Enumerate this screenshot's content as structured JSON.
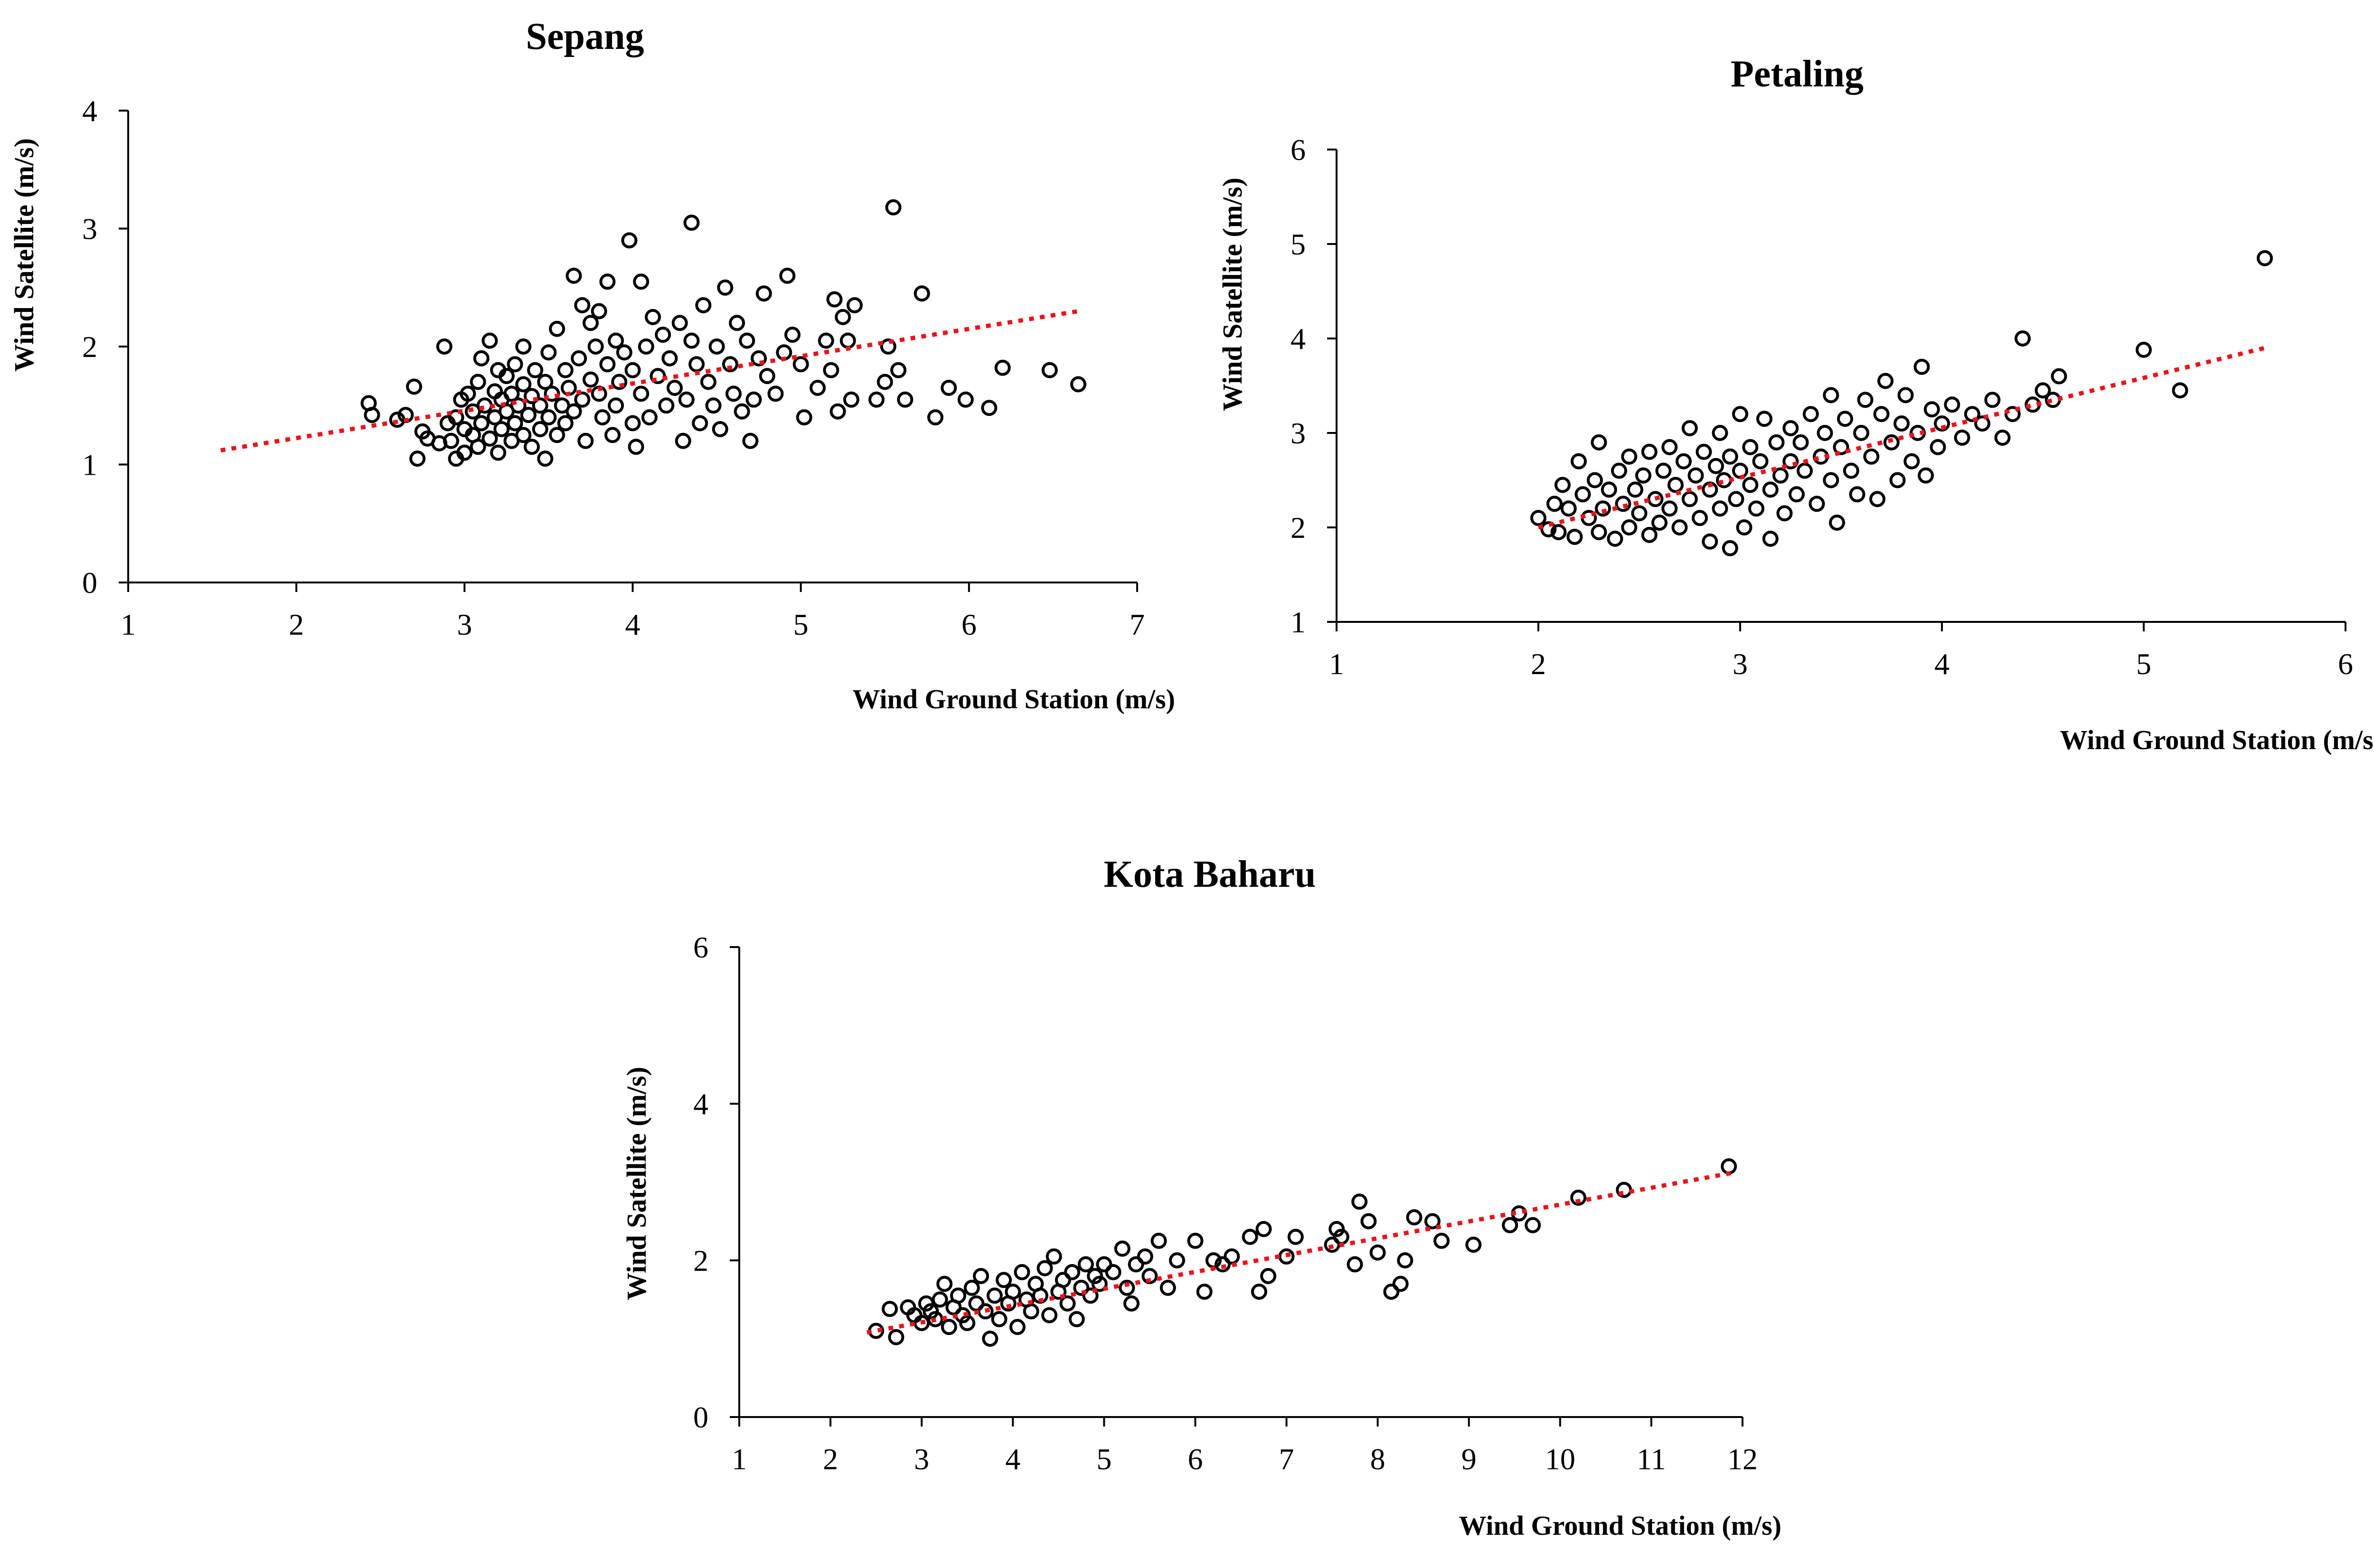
{
  "colors": {
    "background": "#ffffff",
    "points": "#000000",
    "trendline": "#e8141c"
  },
  "chart_data": [
    {
      "type": "scatter",
      "title": "Sepang",
      "xlabel": "Wind Ground Station (m/s)",
      "ylabel": "Wind Satellite (m/s)",
      "xlim": [
        1,
        7
      ],
      "ylim": [
        0,
        4
      ],
      "xticks": [
        1,
        2,
        3,
        4,
        5,
        6,
        7
      ],
      "yticks": [
        0,
        1,
        2,
        3,
        4
      ],
      "trendline": {
        "style": "dotted",
        "x": [
          1.55,
          6.65
        ],
        "y": [
          1.12,
          2.3
        ]
      },
      "points": [
        [
          2.43,
          1.52
        ],
        [
          2.45,
          1.42
        ],
        [
          2.6,
          1.38
        ],
        [
          2.65,
          1.42
        ],
        [
          2.7,
          1.66
        ],
        [
          2.72,
          1.05
        ],
        [
          2.75,
          1.28
        ],
        [
          2.78,
          1.22
        ],
        [
          2.85,
          1.18
        ],
        [
          2.88,
          2.0
        ],
        [
          2.9,
          1.35
        ],
        [
          2.92,
          1.2
        ],
        [
          2.95,
          1.05
        ],
        [
          2.95,
          1.4
        ],
        [
          2.98,
          1.55
        ],
        [
          3.0,
          1.1
        ],
        [
          3.0,
          1.3
        ],
        [
          3.02,
          1.6
        ],
        [
          3.05,
          1.25
        ],
        [
          3.05,
          1.45
        ],
        [
          3.08,
          1.15
        ],
        [
          3.08,
          1.7
        ],
        [
          3.1,
          1.35
        ],
        [
          3.1,
          1.9
        ],
        [
          3.12,
          1.5
        ],
        [
          3.15,
          1.22
        ],
        [
          3.15,
          2.05
        ],
        [
          3.18,
          1.4
        ],
        [
          3.18,
          1.62
        ],
        [
          3.2,
          1.1
        ],
        [
          3.2,
          1.8
        ],
        [
          3.22,
          1.3
        ],
        [
          3.22,
          1.55
        ],
        [
          3.25,
          1.45
        ],
        [
          3.25,
          1.75
        ],
        [
          3.28,
          1.2
        ],
        [
          3.28,
          1.6
        ],
        [
          3.3,
          1.35
        ],
        [
          3.3,
          1.85
        ],
        [
          3.32,
          1.5
        ],
        [
          3.35,
          1.25
        ],
        [
          3.35,
          1.68
        ],
        [
          3.35,
          2.0
        ],
        [
          3.38,
          1.42
        ],
        [
          3.4,
          1.15
        ],
        [
          3.4,
          1.58
        ],
        [
          3.42,
          1.8
        ],
        [
          3.45,
          1.3
        ],
        [
          3.45,
          1.5
        ],
        [
          3.48,
          1.05
        ],
        [
          3.48,
          1.7
        ],
        [
          3.5,
          1.4
        ],
        [
          3.5,
          1.95
        ],
        [
          3.52,
          1.6
        ],
        [
          3.55,
          1.25
        ],
        [
          3.55,
          2.15
        ],
        [
          3.58,
          1.5
        ],
        [
          3.6,
          1.8
        ],
        [
          3.6,
          1.35
        ],
        [
          3.62,
          1.65
        ],
        [
          3.65,
          2.6
        ],
        [
          3.65,
          1.45
        ],
        [
          3.68,
          1.9
        ],
        [
          3.7,
          2.35
        ],
        [
          3.7,
          1.55
        ],
        [
          3.72,
          1.2
        ],
        [
          3.75,
          2.2
        ],
        [
          3.75,
          1.72
        ],
        [
          3.78,
          2.0
        ],
        [
          3.8,
          2.3
        ],
        [
          3.8,
          1.6
        ],
        [
          3.82,
          1.4
        ],
        [
          3.85,
          2.55
        ],
        [
          3.85,
          1.85
        ],
        [
          3.88,
          1.25
        ],
        [
          3.9,
          2.05
        ],
        [
          3.9,
          1.5
        ],
        [
          3.92,
          1.7
        ],
        [
          3.95,
          1.95
        ],
        [
          3.98,
          2.9
        ],
        [
          4.0,
          1.35
        ],
        [
          4.0,
          1.8
        ],
        [
          4.02,
          1.15
        ],
        [
          4.05,
          2.55
        ],
        [
          4.05,
          1.6
        ],
        [
          4.08,
          2.0
        ],
        [
          4.1,
          1.4
        ],
        [
          4.12,
          2.25
        ],
        [
          4.15,
          1.75
        ],
        [
          4.18,
          2.1
        ],
        [
          4.2,
          1.5
        ],
        [
          4.22,
          1.9
        ],
        [
          4.25,
          1.65
        ],
        [
          4.28,
          2.2
        ],
        [
          4.3,
          1.2
        ],
        [
          4.32,
          1.55
        ],
        [
          4.35,
          3.05
        ],
        [
          4.35,
          2.05
        ],
        [
          4.38,
          1.85
        ],
        [
          4.4,
          1.35
        ],
        [
          4.42,
          2.35
        ],
        [
          4.45,
          1.7
        ],
        [
          4.48,
          1.5
        ],
        [
          4.5,
          2.0
        ],
        [
          4.52,
          1.3
        ],
        [
          4.55,
          2.5
        ],
        [
          4.58,
          1.85
        ],
        [
          4.6,
          1.6
        ],
        [
          4.62,
          2.2
        ],
        [
          4.65,
          1.45
        ],
        [
          4.68,
          2.05
        ],
        [
          4.7,
          1.2
        ],
        [
          4.72,
          1.55
        ],
        [
          4.75,
          1.9
        ],
        [
          4.78,
          2.45
        ],
        [
          4.8,
          1.75
        ],
        [
          4.85,
          1.6
        ],
        [
          4.9,
          1.95
        ],
        [
          4.92,
          2.6
        ],
        [
          4.95,
          2.1
        ],
        [
          5.0,
          1.85
        ],
        [
          5.02,
          1.4
        ],
        [
          5.1,
          1.65
        ],
        [
          5.15,
          2.05
        ],
        [
          5.18,
          1.8
        ],
        [
          5.2,
          2.4
        ],
        [
          5.22,
          1.45
        ],
        [
          5.25,
          2.25
        ],
        [
          5.28,
          2.05
        ],
        [
          5.3,
          1.55
        ],
        [
          5.32,
          2.35
        ],
        [
          5.45,
          1.55
        ],
        [
          5.5,
          1.7
        ],
        [
          5.52,
          2.0
        ],
        [
          5.55,
          3.18
        ],
        [
          5.58,
          1.8
        ],
        [
          5.62,
          1.55
        ],
        [
          5.72,
          2.45
        ],
        [
          5.8,
          1.4
        ],
        [
          5.88,
          1.65
        ],
        [
          5.98,
          1.55
        ],
        [
          6.12,
          1.48
        ],
        [
          6.2,
          1.82
        ],
        [
          6.48,
          1.8
        ],
        [
          6.65,
          1.68
        ]
      ]
    },
    {
      "type": "scatter",
      "title": "Petaling",
      "xlabel": "Wind Ground Station (m/s)",
      "ylabel": "Wind Satellite (m/s)",
      "xlim": [
        1,
        6
      ],
      "ylim": [
        1,
        6
      ],
      "xticks": [
        1,
        2,
        3,
        4,
        5,
        6
      ],
      "yticks": [
        1,
        2,
        3,
        4,
        5,
        6
      ],
      "trendline": {
        "style": "dotted",
        "x": [
          2.0,
          5.6
        ],
        "y": [
          2.0,
          3.9
        ]
      },
      "points": [
        [
          2.0,
          2.1
        ],
        [
          2.05,
          1.98
        ],
        [
          2.08,
          2.25
        ],
        [
          2.1,
          1.95
        ],
        [
          2.12,
          2.45
        ],
        [
          2.15,
          2.2
        ],
        [
          2.18,
          1.9
        ],
        [
          2.2,
          2.7
        ],
        [
          2.22,
          2.35
        ],
        [
          2.25,
          2.1
        ],
        [
          2.28,
          2.5
        ],
        [
          2.3,
          1.95
        ],
        [
          2.3,
          2.9
        ],
        [
          2.32,
          2.2
        ],
        [
          2.35,
          2.4
        ],
        [
          2.38,
          1.88
        ],
        [
          2.4,
          2.6
        ],
        [
          2.42,
          2.25
        ],
        [
          2.45,
          2.0
        ],
        [
          2.45,
          2.75
        ],
        [
          2.48,
          2.4
        ],
        [
          2.5,
          2.15
        ],
        [
          2.52,
          2.55
        ],
        [
          2.55,
          1.92
        ],
        [
          2.55,
          2.8
        ],
        [
          2.58,
          2.3
        ],
        [
          2.6,
          2.05
        ],
        [
          2.62,
          2.6
        ],
        [
          2.65,
          2.2
        ],
        [
          2.65,
          2.85
        ],
        [
          2.68,
          2.45
        ],
        [
          2.7,
          2.0
        ],
        [
          2.72,
          2.7
        ],
        [
          2.75,
          2.3
        ],
        [
          2.75,
          3.05
        ],
        [
          2.78,
          2.55
        ],
        [
          2.8,
          2.1
        ],
        [
          2.82,
          2.8
        ],
        [
          2.85,
          1.85
        ],
        [
          2.85,
          2.4
        ],
        [
          2.88,
          2.65
        ],
        [
          2.9,
          2.2
        ],
        [
          2.9,
          3.0
        ],
        [
          2.92,
          2.5
        ],
        [
          2.95,
          1.78
        ],
        [
          2.95,
          2.75
        ],
        [
          2.98,
          2.3
        ],
        [
          3.0,
          2.6
        ],
        [
          3.0,
          3.2
        ],
        [
          3.02,
          2.0
        ],
        [
          3.05,
          2.45
        ],
        [
          3.05,
          2.85
        ],
        [
          3.08,
          2.2
        ],
        [
          3.1,
          2.7
        ],
        [
          3.12,
          3.15
        ],
        [
          3.15,
          2.4
        ],
        [
          3.15,
          1.88
        ],
        [
          3.18,
          2.9
        ],
        [
          3.2,
          2.55
        ],
        [
          3.22,
          2.15
        ],
        [
          3.25,
          3.05
        ],
        [
          3.25,
          2.7
        ],
        [
          3.28,
          2.35
        ],
        [
          3.3,
          2.9
        ],
        [
          3.32,
          2.6
        ],
        [
          3.35,
          3.2
        ],
        [
          3.38,
          2.25
        ],
        [
          3.4,
          2.75
        ],
        [
          3.42,
          3.0
        ],
        [
          3.45,
          2.5
        ],
        [
          3.45,
          3.4
        ],
        [
          3.48,
          2.05
        ],
        [
          3.5,
          2.85
        ],
        [
          3.52,
          3.15
        ],
        [
          3.55,
          2.6
        ],
        [
          3.58,
          2.35
        ],
        [
          3.6,
          3.0
        ],
        [
          3.62,
          3.35
        ],
        [
          3.65,
          2.75
        ],
        [
          3.68,
          2.3
        ],
        [
          3.7,
          3.2
        ],
        [
          3.72,
          3.55
        ],
        [
          3.75,
          2.9
        ],
        [
          3.78,
          2.5
        ],
        [
          3.8,
          3.1
        ],
        [
          3.82,
          3.4
        ],
        [
          3.85,
          2.7
        ],
        [
          3.88,
          3.0
        ],
        [
          3.9,
          3.7
        ],
        [
          3.92,
          2.55
        ],
        [
          3.95,
          3.25
        ],
        [
          3.98,
          2.85
        ],
        [
          4.0,
          3.1
        ],
        [
          4.05,
          3.3
        ],
        [
          4.1,
          2.95
        ],
        [
          4.15,
          3.2
        ],
        [
          4.2,
          3.1
        ],
        [
          4.25,
          3.35
        ],
        [
          4.3,
          2.95
        ],
        [
          4.35,
          3.2
        ],
        [
          4.4,
          4.0
        ],
        [
          4.45,
          3.3
        ],
        [
          4.5,
          3.45
        ],
        [
          4.55,
          3.35
        ],
        [
          4.58,
          3.6
        ],
        [
          5.0,
          3.88
        ],
        [
          5.18,
          3.45
        ],
        [
          5.6,
          4.85
        ]
      ]
    },
    {
      "type": "scatter",
      "title": "Kota Baharu",
      "xlabel": "Wind Ground Station (m/s)",
      "ylabel": "Wind Satellite (m/s)",
      "xlim": [
        1,
        12
      ],
      "ylim": [
        0,
        6
      ],
      "xticks": [
        1,
        2,
        3,
        4,
        5,
        6,
        7,
        8,
        9,
        10,
        11,
        12
      ],
      "yticks": [
        0,
        2,
        4,
        6
      ],
      "trendline": {
        "style": "dotted",
        "x": [
          2.4,
          11.9
        ],
        "y": [
          1.08,
          3.12
        ]
      },
      "points": [
        [
          2.5,
          1.1
        ],
        [
          2.65,
          1.38
        ],
        [
          2.72,
          1.02
        ],
        [
          2.85,
          1.4
        ],
        [
          2.92,
          1.3
        ],
        [
          3.0,
          1.2
        ],
        [
          3.05,
          1.45
        ],
        [
          3.1,
          1.35
        ],
        [
          3.15,
          1.25
        ],
        [
          3.2,
          1.5
        ],
        [
          3.25,
          1.7
        ],
        [
          3.3,
          1.15
        ],
        [
          3.35,
          1.4
        ],
        [
          3.4,
          1.55
        ],
        [
          3.45,
          1.3
        ],
        [
          3.5,
          1.2
        ],
        [
          3.55,
          1.65
        ],
        [
          3.6,
          1.45
        ],
        [
          3.65,
          1.8
        ],
        [
          3.7,
          1.35
        ],
        [
          3.75,
          1.0
        ],
        [
          3.8,
          1.55
        ],
        [
          3.85,
          1.25
        ],
        [
          3.9,
          1.75
        ],
        [
          3.95,
          1.45
        ],
        [
          4.0,
          1.6
        ],
        [
          4.05,
          1.15
        ],
        [
          4.1,
          1.85
        ],
        [
          4.15,
          1.5
        ],
        [
          4.2,
          1.35
        ],
        [
          4.25,
          1.7
        ],
        [
          4.3,
          1.55
        ],
        [
          4.35,
          1.9
        ],
        [
          4.4,
          1.3
        ],
        [
          4.45,
          2.05
        ],
        [
          4.5,
          1.6
        ],
        [
          4.55,
          1.75
        ],
        [
          4.6,
          1.45
        ],
        [
          4.65,
          1.85
        ],
        [
          4.7,
          1.25
        ],
        [
          4.75,
          1.65
        ],
        [
          4.8,
          1.95
        ],
        [
          4.85,
          1.55
        ],
        [
          4.9,
          1.8
        ],
        [
          4.95,
          1.7
        ],
        [
          5.0,
          1.95
        ],
        [
          5.1,
          1.85
        ],
        [
          5.2,
          2.15
        ],
        [
          5.25,
          1.65
        ],
        [
          5.3,
          1.45
        ],
        [
          5.35,
          1.95
        ],
        [
          5.45,
          2.05
        ],
        [
          5.5,
          1.8
        ],
        [
          5.6,
          2.25
        ],
        [
          5.7,
          1.65
        ],
        [
          5.8,
          2.0
        ],
        [
          6.0,
          2.25
        ],
        [
          6.1,
          1.6
        ],
        [
          6.2,
          2.0
        ],
        [
          6.3,
          1.95
        ],
        [
          6.4,
          2.05
        ],
        [
          6.6,
          2.3
        ],
        [
          6.7,
          1.6
        ],
        [
          6.75,
          2.4
        ],
        [
          6.8,
          1.8
        ],
        [
          7.0,
          2.05
        ],
        [
          7.1,
          2.3
        ],
        [
          7.5,
          2.2
        ],
        [
          7.55,
          2.4
        ],
        [
          7.6,
          2.3
        ],
        [
          7.75,
          1.95
        ],
        [
          7.8,
          2.75
        ],
        [
          7.9,
          2.5
        ],
        [
          8.0,
          2.1
        ],
        [
          8.15,
          1.6
        ],
        [
          8.25,
          1.7
        ],
        [
          8.3,
          2.0
        ],
        [
          8.4,
          2.55
        ],
        [
          8.6,
          2.5
        ],
        [
          8.7,
          2.25
        ],
        [
          9.05,
          2.2
        ],
        [
          9.45,
          2.45
        ],
        [
          9.55,
          2.6
        ],
        [
          9.7,
          2.45
        ],
        [
          10.2,
          2.8
        ],
        [
          10.7,
          2.9
        ],
        [
          11.85,
          3.2
        ]
      ]
    }
  ]
}
